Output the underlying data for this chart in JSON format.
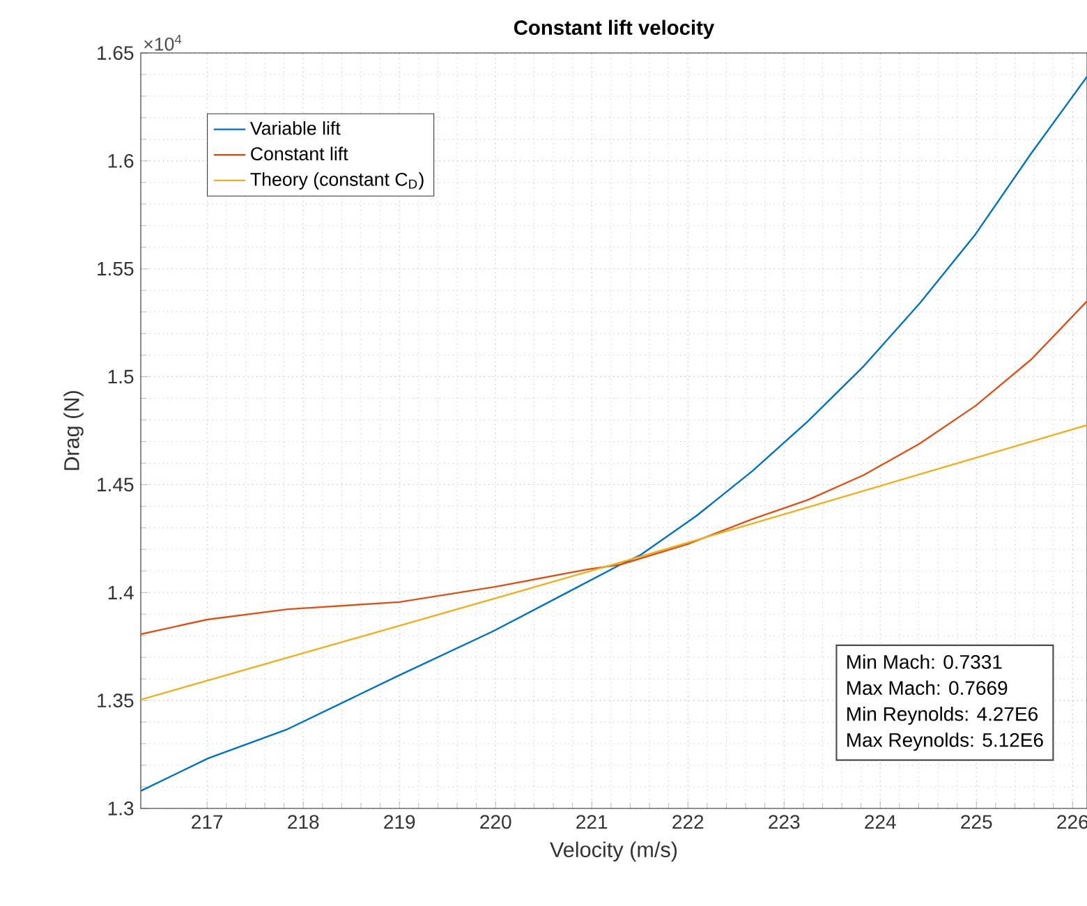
{
  "chart_data": {
    "type": "line",
    "title": "Constant lift velocity",
    "xlabel": "Velocity (m/s)",
    "ylabel": "Drag (N)",
    "annotations": [
      "×10$^{4}$",
      "Min Mach: 0.7331",
      "Max Mach: 0.7669",
      "Min Reynolds: 4.27E6",
      "Max Reynolds: 5.12E6"
    ],
    "xlim": [
      216.31,
      226.15
    ],
    "xticks": [
      217,
      218,
      219,
      220,
      221,
      222,
      223,
      224,
      225,
      226
    ],
    "ylim": [
      1.3,
      1.65
    ],
    "yticks": [
      1.3,
      1.35,
      1.4,
      1.45,
      1.5,
      1.55,
      1.6,
      1.65
    ],
    "grid": true,
    "legend": "top left",
    "marker": "none",
    "line_style": "solid",
    "series": [
      {
        "name": "Variable lift",
        "color": "#0072bd",
        "x": [
          216.31,
          217.01,
          217.84,
          218.98,
          219.97,
          220.7,
          221.3,
          221.51,
          222.09,
          222.67,
          223.25,
          223.83,
          224.41,
          224.99,
          225.57,
          226.15
        ],
        "values": [
          1.3081,
          1.3232,
          1.3368,
          1.3613,
          1.382,
          1.399,
          1.413,
          1.4175,
          1.4356,
          1.4563,
          1.4795,
          1.505,
          1.534,
          1.566,
          1.6035,
          1.639
        ]
      },
      {
        "name": "Constant lift",
        "color": "#d95319",
        "x": [
          216.31,
          217.0,
          217.84,
          219.0,
          220.0,
          220.95,
          221.3,
          222.0,
          222.67,
          223.25,
          223.83,
          224.41,
          224.99,
          225.57,
          226.15
        ],
        "values": [
          1.3807,
          1.3875,
          1.3923,
          1.3956,
          1.4027,
          1.4107,
          1.413,
          1.4225,
          1.434,
          1.443,
          1.4545,
          1.469,
          1.4865,
          1.508,
          1.535
        ]
      },
      {
        "name": "Theory (constant C$_{D}$)",
        "color": "#edb120",
        "x": [
          216.31,
          221.3,
          226.15
        ],
        "values": [
          1.3504,
          1.414,
          1.4776
        ]
      }
    ]
  }
}
